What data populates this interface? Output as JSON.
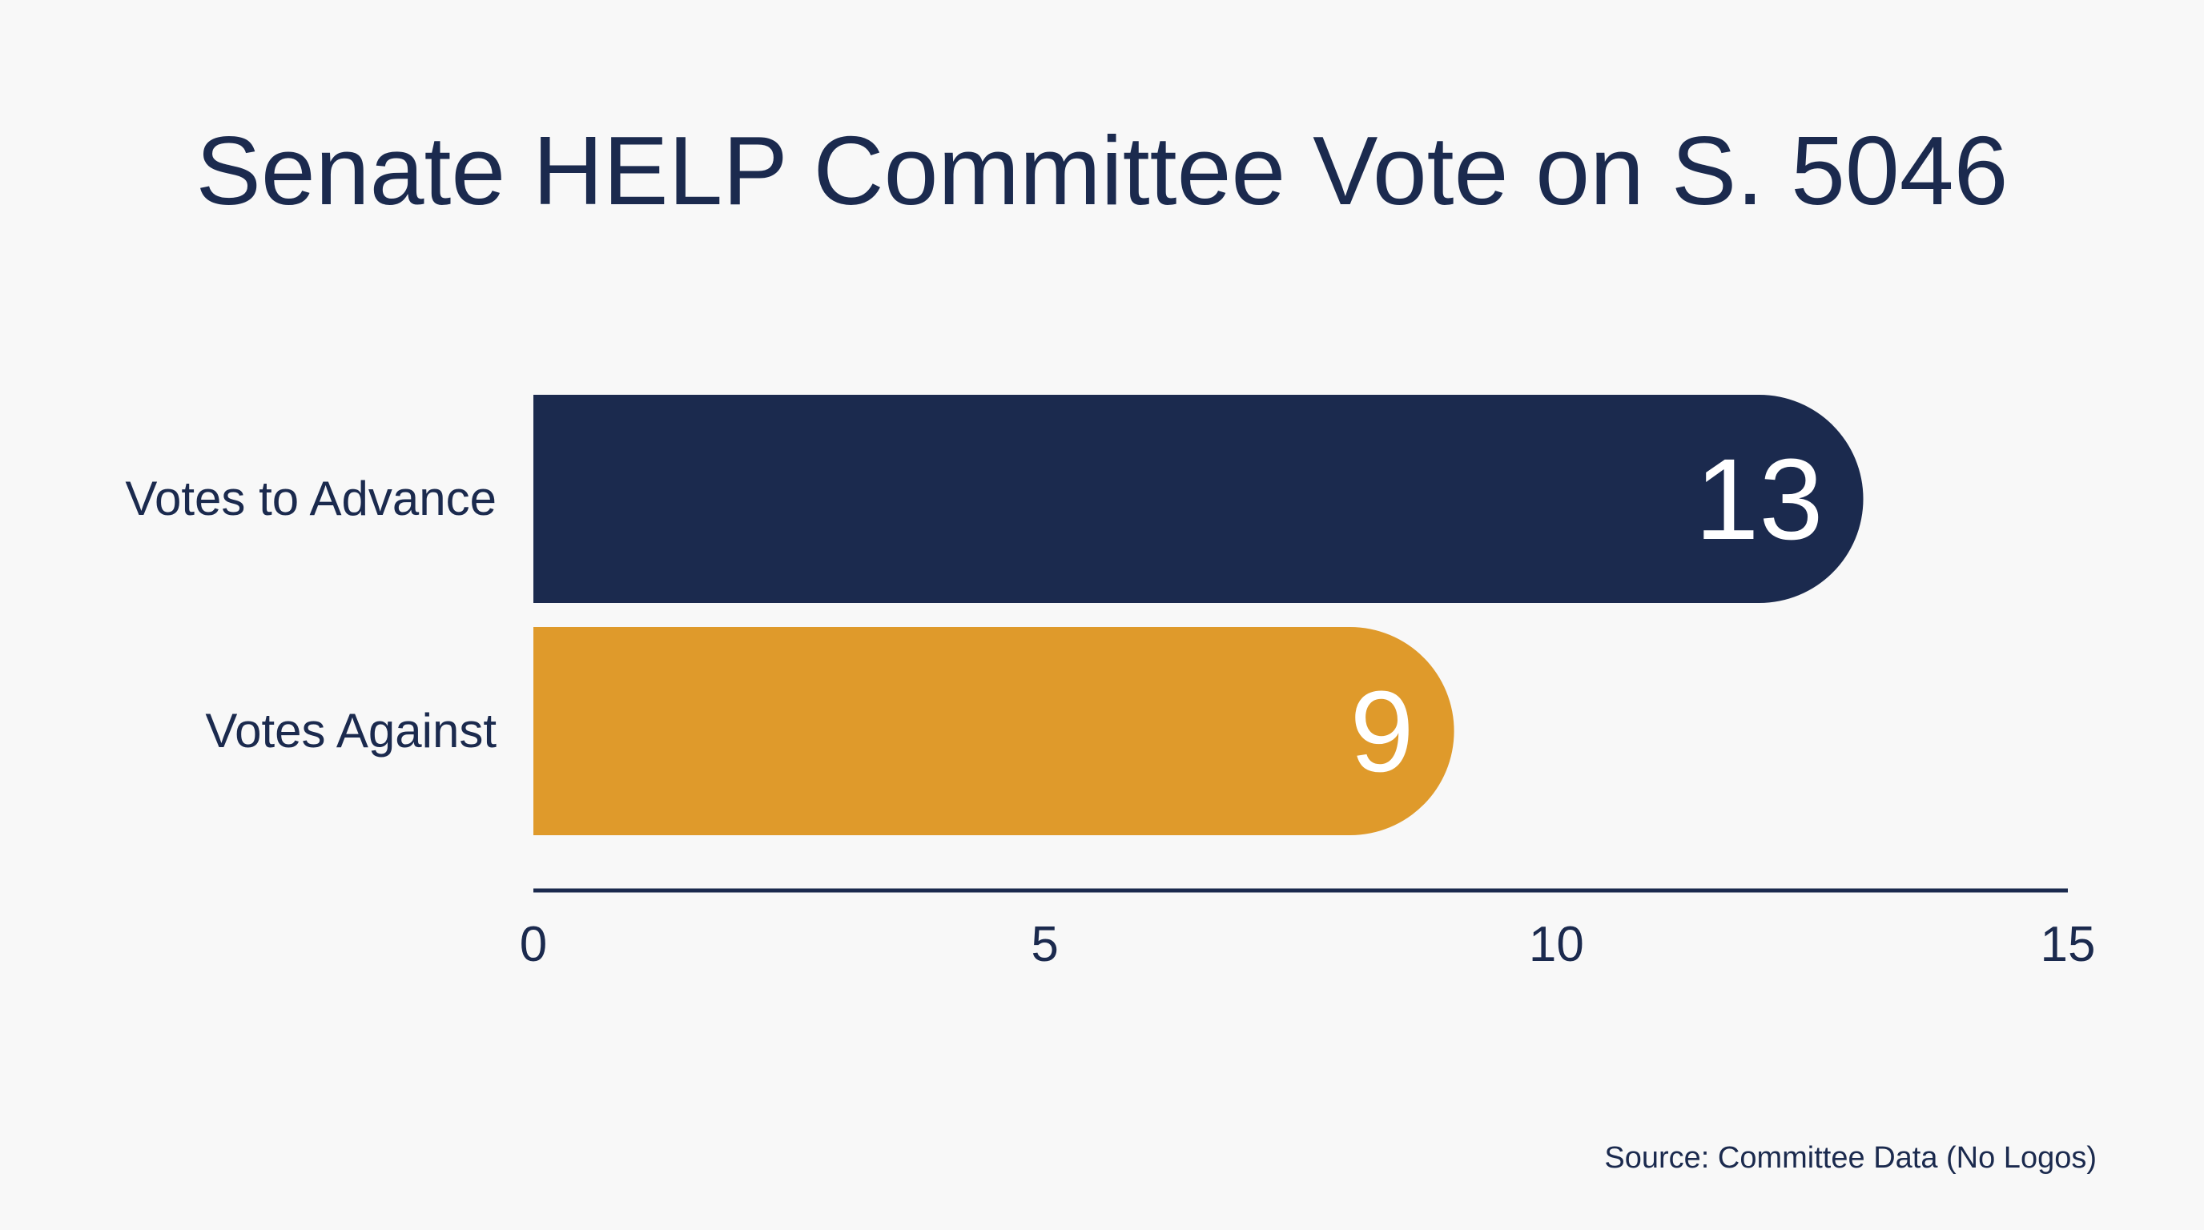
{
  "chart_data": {
    "type": "bar",
    "orientation": "horizontal",
    "title": "Senate HELP Committee Vote on S. 5046",
    "categories": [
      "Votes to Advance",
      "Votes Against"
    ],
    "values": [
      13,
      9
    ],
    "value_labels": [
      "13",
      "9"
    ],
    "colors": [
      "#1b2a4e",
      "#df9a2b"
    ],
    "xlim": [
      0,
      15
    ],
    "xticks": [
      0,
      5,
      10,
      15
    ],
    "xtick_labels": [
      "0",
      "5",
      "10",
      "15"
    ],
    "xlabel": "",
    "ylabel": "",
    "grid": false,
    "legend": "none"
  },
  "source": "Source: Committee Data (No Logos)"
}
